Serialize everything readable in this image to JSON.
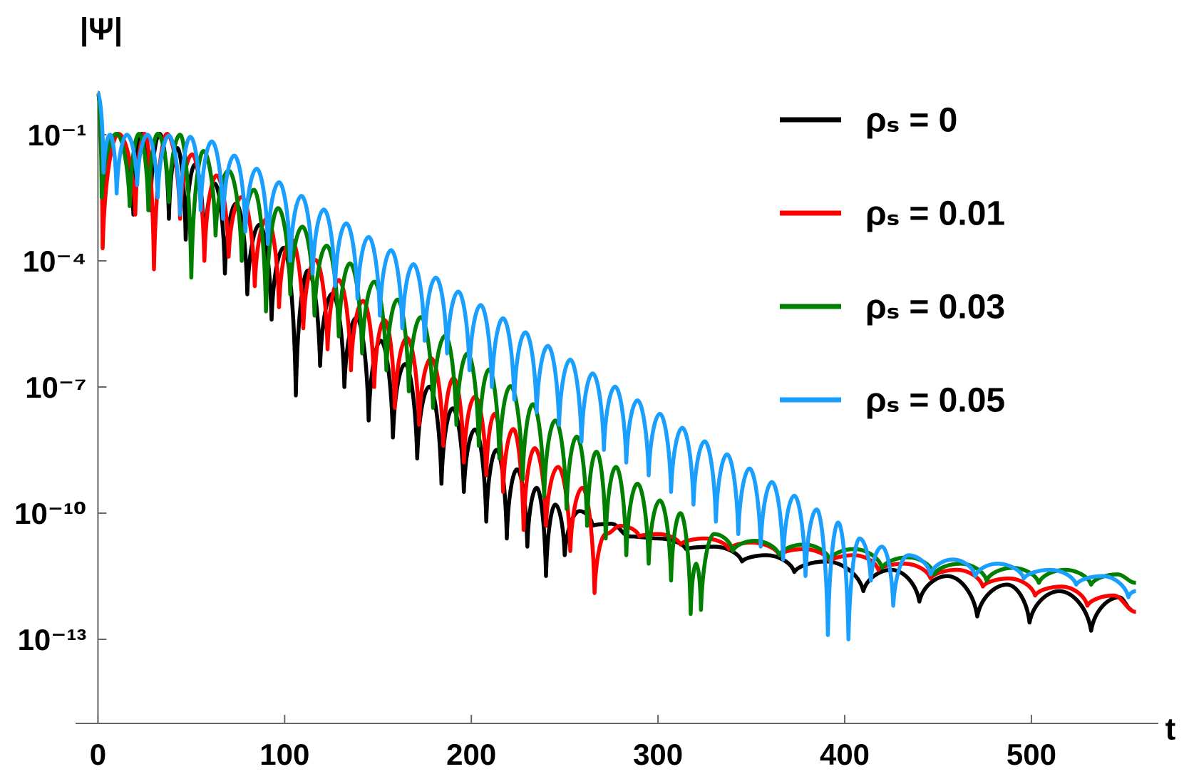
{
  "chart_data": {
    "type": "line",
    "yscale": "log",
    "y_label": "|Ψ|",
    "x_label": "t",
    "legend": "upper right",
    "xlim": [
      -12,
      568
    ],
    "xticks": [
      0,
      100,
      200,
      300,
      400,
      500
    ],
    "ylim": [
      1e-15,
      1
    ],
    "yticks": [
      {
        "value": 0.1,
        "label": "10⁻¹"
      },
      {
        "value": 0.0001,
        "label": "10⁻⁴"
      },
      {
        "value": 1e-07,
        "label": "10⁻⁷"
      },
      {
        "value": 1e-10,
        "label": "10⁻¹⁰"
      },
      {
        "value": 1e-13,
        "label": "10⁻¹³"
      }
    ],
    "series": [
      {
        "name": "ρₛ = 0",
        "color": "#000000",
        "x": [
          0,
          2.5,
          10,
          19,
          23.5,
          28,
          33,
          38,
          42.5,
          47,
          52,
          57,
          62.5,
          68,
          74,
          80,
          86.5,
          93,
          99.5,
          106,
          112.5,
          119,
          125.5,
          132,
          138.5,
          145,
          151.5,
          158,
          164.5,
          171,
          177.5,
          184,
          190,
          196,
          202,
          208,
          213.5,
          219,
          224.5,
          230,
          235,
          240,
          245,
          250,
          258,
          265,
          275,
          285,
          300,
          315,
          330,
          345,
          358,
          373,
          390,
          410,
          425,
          440,
          455,
          471,
          487,
          499,
          515,
          532,
          547,
          554
        ],
        "values": [
          1,
          0.005,
          0.105,
          0.00126,
          0.105,
          0.0016,
          0.105,
          0.001,
          0.048,
          0.00032,
          0.0195,
          0.00016,
          0.0069,
          5e-05,
          0.0023,
          1.6e-05,
          0.00072,
          4e-06,
          0.000205,
          6.3e-08,
          5.9e-05,
          3.2e-07,
          1.66e-05,
          1e-07,
          4.5e-06,
          1.6e-08,
          1.26e-06,
          6.3e-09,
          3.5e-07,
          2e-09,
          1.02e-07,
          5e-10,
          3.1e-08,
          3.2e-10,
          9.8e-09,
          6.3e-11,
          3.2e-09,
          2.5e-11,
          1.1e-09,
          1.6e-11,
          4e-10,
          3.2e-12,
          1.6e-10,
          1e-11,
          1.12e-10,
          5e-11,
          5.6e-11,
          2.8e-11,
          2.5e-11,
          1.4e-11,
          1.6e-11,
          7.1e-12,
          1e-11,
          4e-12,
          7.1e-12,
          1.4e-12,
          4.5e-12,
          7.9e-13,
          3.2e-12,
          3.5e-13,
          2e-12,
          2.5e-13,
          1.4e-12,
          1.6e-13,
          1e-12,
          5e-13
        ]
      },
      {
        "name": "ρₛ = 0.01",
        "color": "#ff0000",
        "x": [
          0,
          2.5,
          11,
          20,
          25,
          30,
          37,
          44,
          50.5,
          57,
          63.5,
          70,
          77,
          84,
          90.5,
          97,
          103.5,
          110,
          116.5,
          123,
          129,
          135.5,
          142,
          148,
          153.5,
          159,
          165.5,
          172,
          178.5,
          185,
          190.5,
          196,
          202,
          208,
          212.5,
          217,
          222.5,
          228,
          234,
          240,
          246.5,
          253,
          259.5,
          266,
          272,
          280,
          290,
          300,
          312,
          325,
          338,
          350,
          365,
          378,
          392,
          405,
          418,
          432,
          446,
          460,
          474,
          488,
          502,
          516,
          530,
          544,
          556
        ],
        "values": [
          1,
          0.0002,
          0.105,
          0.00126,
          0.105,
          6.3e-05,
          0.105,
          0.001,
          0.034,
          0.0001,
          0.0107,
          0.000126,
          0.0033,
          2.5e-05,
          0.00102,
          7.9e-06,
          0.00033,
          2.5e-06,
          0.000105,
          7.9e-07,
          3.5e-05,
          2.5e-07,
          1.12e-05,
          1e-07,
          3.9e-06,
          3.2e-08,
          1.48e-06,
          1.26e-08,
          4.8e-07,
          4e-09,
          1.62e-07,
          1.6e-09,
          5.9e-08,
          7.9e-10,
          2.3e-08,
          3.2e-10,
          1e-08,
          4e-11,
          3.5e-09,
          5e-11,
          1.26e-09,
          1.26e-11,
          4e-10,
          1.26e-12,
          3.2e-11,
          5e-11,
          2.8e-11,
          3.2e-11,
          1.8e-11,
          2.5e-11,
          1.4e-11,
          2e-11,
          1e-11,
          1.4e-11,
          7.1e-12,
          1e-11,
          4.5e-12,
          6.3e-12,
          2.8e-12,
          4.5e-12,
          1.8e-12,
          2.8e-12,
          1.1e-12,
          1.8e-12,
          6.3e-13,
          1.1e-12,
          4.5e-13
        ]
      },
      {
        "name": "ρₛ = 0.03",
        "color": "#008000",
        "x": [
          0,
          2,
          10,
          17,
          22,
          27,
          32,
          38,
          44,
          50,
          56.5,
          63,
          70,
          77,
          83.5,
          90,
          96.5,
          103,
          109.5,
          116,
          122.5,
          129,
          135,
          141.5,
          148,
          154.5,
          160.5,
          166.5,
          173,
          179.5,
          186,
          192,
          198,
          204,
          209.5,
          215,
          221,
          227.5,
          233,
          239,
          245,
          251,
          256.5,
          262,
          267,
          272,
          277.5,
          283,
          289,
          295,
          301,
          307,
          312,
          317.5,
          320.5,
          323,
          330,
          340,
          352,
          365,
          378,
          392,
          405,
          420,
          434,
          448,
          462,
          476,
          490,
          504,
          518,
          532,
          546,
          556
        ],
        "values": [
          1,
          0.0032,
          0.105,
          0.002,
          0.105,
          0.0016,
          0.105,
          0.0025,
          0.1,
          4e-05,
          0.041,
          0.0004,
          0.014,
          0.0001,
          0.0049,
          6.3e-06,
          0.0018,
          1.6e-05,
          0.00065,
          5e-06,
          0.00023,
          1.6e-06,
          8.7e-05,
          6.3e-07,
          3.2e-05,
          2.5e-07,
          1.2e-05,
          7.9e-08,
          4.6e-06,
          3.2e-08,
          1.66e-06,
          1.26e-08,
          6.3e-07,
          4e-09,
          2.6e-07,
          2e-09,
          1.05e-07,
          6.3e-10,
          3.9e-08,
          2.5e-10,
          1.6e-08,
          1.26e-10,
          6.6e-09,
          5e-11,
          2.9e-09,
          2.5e-11,
          1.26e-09,
          1e-11,
          5e-10,
          6.3e-12,
          2e-10,
          2.5e-12,
          1e-10,
          4e-13,
          6.3e-12,
          5e-13,
          3.2e-11,
          1.26e-11,
          2.2e-11,
          1e-11,
          1.8e-11,
          7.9e-12,
          1.4e-11,
          5e-12,
          8.9e-12,
          3.5e-12,
          6.3e-12,
          2.5e-12,
          5e-12,
          2.2e-12,
          4.5e-12,
          2e-12,
          3.5e-12,
          2.2e-12
        ]
      },
      {
        "name": "ρₛ = 0.05",
        "color": "#1a9fff",
        "x": [
          0,
          3,
          6.5,
          10,
          15.5,
          21,
          26.5,
          32,
          38,
          44,
          49.5,
          55,
          61,
          67,
          73,
          79,
          85,
          91,
          97,
          103,
          109,
          115,
          121,
          127,
          133,
          139,
          145,
          151,
          157,
          163,
          169,
          175,
          181,
          187,
          193,
          199,
          205,
          211,
          217,
          223,
          229,
          235,
          241,
          247,
          253,
          259,
          265,
          271,
          277,
          283,
          289,
          295,
          301,
          307,
          313,
          319,
          325,
          331,
          337,
          343,
          349,
          355,
          361,
          367,
          373,
          379,
          385,
          391,
          396.5,
          402,
          408,
          414,
          420,
          426,
          434,
          446,
          458,
          470,
          482,
          496,
          510,
          524,
          538,
          552,
          556
        ],
        "values": [
          1,
          0.0126,
          0.1,
          0.004,
          0.1,
          0.0063,
          0.1,
          0.0032,
          0.095,
          0.00126,
          0.089,
          0.0016,
          0.069,
          0.001,
          0.032,
          0.0005,
          0.0155,
          0.00025,
          0.0074,
          0.0001,
          0.0035,
          5e-05,
          0.00166,
          2.5e-05,
          0.00078,
          1.26e-05,
          0.00037,
          5e-06,
          0.00018,
          2.5e-06,
          8.3e-05,
          1.26e-06,
          4e-05,
          6.3e-07,
          1.86e-05,
          2.5e-07,
          8.9e-06,
          1e-07,
          4.3e-06,
          5e-08,
          2e-06,
          2.5e-08,
          9.5e-07,
          1.26e-08,
          4.5e-07,
          5e-09,
          2.1e-07,
          3.2e-09,
          1.02e-07,
          1.6e-09,
          4.8e-08,
          7.9e-10,
          2.3e-08,
          3.2e-10,
          1.07e-08,
          1.6e-10,
          5.1e-09,
          6.3e-11,
          2.5e-09,
          3.2e-11,
          1.15e-09,
          1.6e-11,
          5.5e-10,
          7.9e-12,
          2.6e-10,
          3.2e-12,
          1.23e-10,
          1.26e-13,
          6e-11,
          1e-13,
          2.5e-11,
          2.5e-12,
          1.6e-11,
          6.3e-13,
          1e-11,
          3.5e-12,
          7.9e-12,
          3.2e-12,
          6.3e-12,
          2.8e-12,
          4.5e-12,
          2e-12,
          3.2e-12,
          1e-12,
          1.4e-12
        ]
      }
    ]
  }
}
